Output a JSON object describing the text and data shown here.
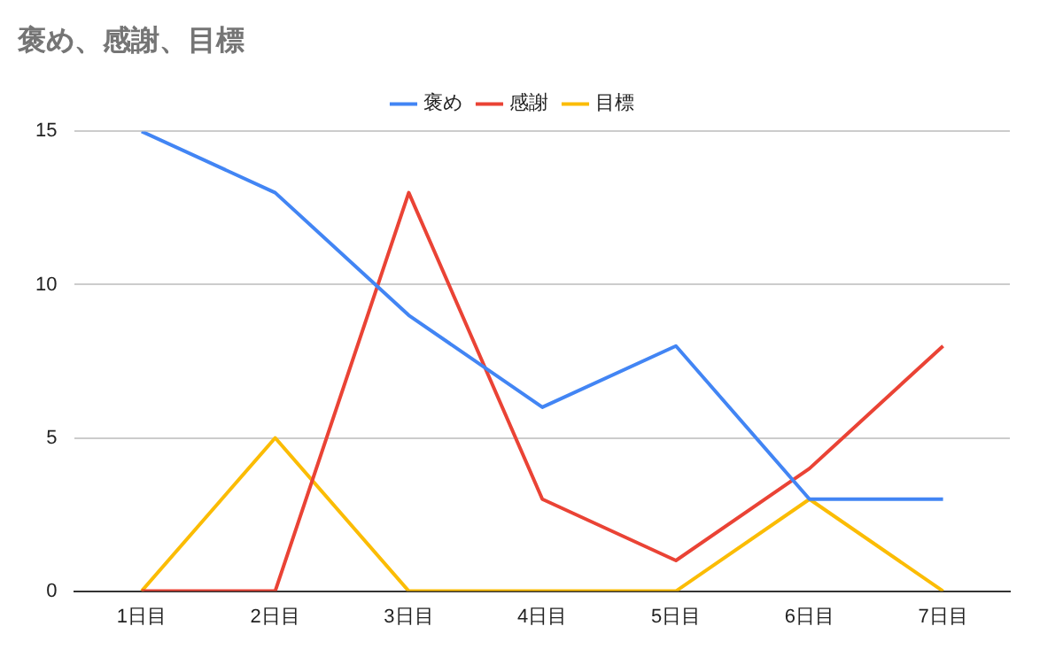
{
  "chart_data": {
    "type": "line",
    "title": "褒め、感謝、目標",
    "categories": [
      "1日目",
      "2日目",
      "3日目",
      "4日目",
      "5日目",
      "6日目",
      "7日目"
    ],
    "series": [
      {
        "name": "褒め",
        "color": "#4285f4",
        "values": [
          15,
          13,
          9,
          6,
          8,
          3,
          3
        ]
      },
      {
        "name": "感謝",
        "color": "#ea4335",
        "values": [
          0,
          0,
          13,
          3,
          1,
          4,
          8
        ]
      },
      {
        "name": "目標",
        "color": "#fbbc04",
        "values": [
          0,
          5,
          0,
          0,
          0,
          3,
          0
        ]
      }
    ],
    "ylim": [
      0,
      15
    ],
    "yticks": [
      0,
      5,
      10,
      15
    ],
    "grid": "y",
    "legend": "top",
    "marker": "none",
    "line_style": "solid"
  }
}
